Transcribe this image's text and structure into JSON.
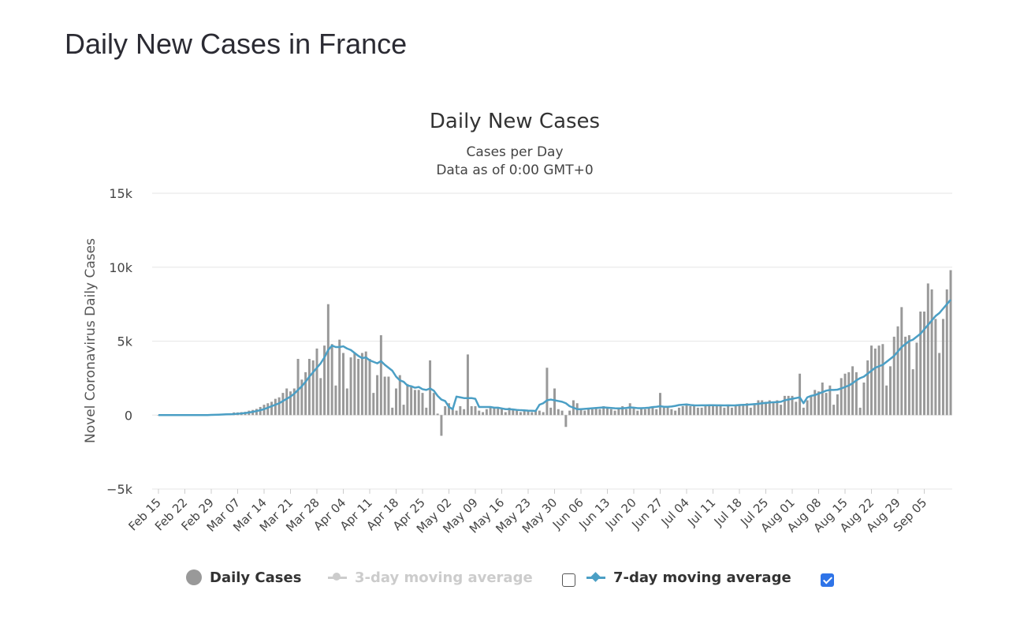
{
  "page": {
    "title": "Daily New Cases in France"
  },
  "chart_data": {
    "type": "bar",
    "title": "Daily New Cases",
    "subtitle_1": "Cases per Day",
    "subtitle_2": "Data as of 0:00 GMT+0",
    "ylabel": "Novel Coronavirus Daily Cases",
    "xlabel": "",
    "ylim": [
      -5000,
      15000
    ],
    "y_ticks": [
      -5000,
      0,
      5000,
      10000,
      15000
    ],
    "y_tick_labels": [
      "−5k",
      "0",
      "5k",
      "10k",
      "15k"
    ],
    "x_tick_labels": [
      "Feb 15",
      "Feb 22",
      "Feb 29",
      "Mar 07",
      "Mar 14",
      "Mar 21",
      "Mar 28",
      "Apr 04",
      "Apr 11",
      "Apr 18",
      "Apr 25",
      "May 02",
      "May 09",
      "May 16",
      "May 23",
      "May 30",
      "Jun 06",
      "Jun 13",
      "Jun 20",
      "Jun 27",
      "Jul 04",
      "Jul 11",
      "Jul 18",
      "Jul 25",
      "Aug 01",
      "Aug 08",
      "Aug 15",
      "Aug 22",
      "Aug 29",
      "Sep 05"
    ],
    "grid": true,
    "legend_position": "bottom",
    "colors": {
      "bars": "#999999",
      "ma7": "#4b9fc5",
      "ma3": "#cccccc",
      "checkbox_on": "#2f74e8"
    },
    "series": [
      {
        "name": "Daily Cases",
        "type": "bar",
        "visible": true
      },
      {
        "name": "3-day moving average",
        "type": "line",
        "visible": false,
        "checked": false
      },
      {
        "name": "7-day moving average",
        "type": "line",
        "visible": true,
        "checked": true
      }
    ],
    "daily_cases_by_week": [
      [
        0,
        0,
        0,
        0,
        0,
        0,
        0
      ],
      [
        0,
        0,
        0,
        0,
        0,
        0,
        5
      ],
      [
        10,
        20,
        30,
        40,
        60,
        90,
        180
      ],
      [
        180,
        200,
        220,
        300,
        350,
        420,
        550
      ],
      [
        700,
        800,
        900,
        1100,
        1200,
        1500,
        1800
      ],
      [
        1600,
        1800,
        3800,
        2400,
        2900,
        3800,
        3700
      ],
      [
        4500,
        2500,
        4700,
        7500,
        4800,
        2000,
        5100
      ],
      [
        4200,
        1800,
        3900,
        4200,
        3800,
        4200,
        4300
      ],
      [
        3800,
        1500,
        2700,
        5400,
        2600,
        2600,
        500
      ],
      [
        1800,
        2700,
        700,
        2100,
        1900,
        1700,
        1700
      ],
      [
        1500,
        500,
        3700,
        1500,
        100,
        -1400,
        600
      ],
      [
        800,
        400,
        300,
        600,
        400,
        4100,
        600
      ],
      [
        600,
        300,
        200,
        400,
        600,
        500,
        500
      ],
      [
        400,
        200,
        500,
        400,
        300,
        200,
        300
      ],
      [
        300,
        200,
        300,
        300,
        200,
        3200,
        500
      ],
      [
        1800,
        400,
        300,
        -800,
        300,
        1000,
        800
      ],
      [
        400,
        300,
        400,
        400,
        500,
        400,
        600
      ],
      [
        500,
        400,
        300,
        400,
        600,
        400,
        800
      ],
      [
        500,
        300,
        500,
        400,
        500,
        500,
        400
      ],
      [
        1500,
        500,
        600,
        400,
        300,
        500,
        600
      ],
      [
        700,
        600,
        700,
        500,
        500,
        600,
        700
      ],
      [
        600,
        600,
        700,
        500,
        600,
        500,
        600
      ],
      [
        700,
        700,
        800,
        500,
        800,
        1000,
        1000
      ],
      [
        900,
        1000,
        900,
        1000,
        700,
        1300,
        1300
      ],
      [
        1300,
        900,
        2800,
        500,
        1000,
        1300,
        1700
      ],
      [
        1600,
        2200,
        1500,
        2000,
        700,
        1400,
        2500
      ],
      [
        2800,
        2900,
        3300,
        2900,
        500,
        2200,
        3700
      ],
      [
        4700,
        4500,
        4700,
        4800,
        2000,
        3300,
        5300
      ],
      [
        6000,
        7300,
        5300,
        5400,
        3100,
        4900,
        7000
      ],
      [
        7000,
        8900,
        8500,
        6500,
        4200,
        6500,
        8500
      ],
      [
        9800
      ]
    ],
    "ma7_by_week": [
      [
        0,
        0,
        0,
        0,
        0,
        0,
        0
      ],
      [
        0,
        0,
        0,
        0,
        0,
        0,
        0
      ],
      [
        10,
        20,
        30,
        40,
        50,
        60,
        70
      ],
      [
        90,
        110,
        140,
        170,
        220,
        270,
        330
      ],
      [
        400,
        500,
        600,
        700,
        800,
        950,
        1100
      ],
      [
        1250,
        1450,
        1700,
        1950,
        2250,
        2600,
        2900
      ],
      [
        3200,
        3500,
        3900,
        4400,
        4700,
        4600,
        4600
      ],
      [
        4650,
        4500,
        4400,
        4200,
        4000,
        3850,
        3900
      ],
      [
        3700,
        3600,
        3500,
        3650,
        3400,
        3200,
        3000
      ],
      [
        2600,
        2350,
        2250,
        2000,
        1950,
        1850,
        1900
      ],
      [
        1750,
        1700,
        1800,
        1650,
        1300,
        1050,
        950
      ],
      [
        550,
        400,
        1250,
        1200,
        1150,
        1150,
        1150
      ],
      [
        1100,
        550,
        550,
        550,
        550,
        500,
        500
      ],
      [
        450,
        400,
        400,
        380,
        350,
        330,
        320
      ],
      [
        300,
        290,
        280,
        700,
        800,
        1000,
        1050
      ],
      [
        1000,
        950,
        900,
        800,
        600,
        500,
        400
      ],
      [
        400,
        420,
        440,
        460,
        480,
        500,
        520
      ],
      [
        500,
        480,
        460,
        450,
        460,
        480,
        520
      ],
      [
        500,
        470,
        470,
        480,
        500,
        540,
        560
      ],
      [
        600,
        560,
        560,
        580,
        620,
        680,
        700
      ],
      [
        720,
        680,
        660,
        650,
        660,
        660,
        670
      ],
      [
        670,
        660,
        660,
        650,
        660,
        650,
        660
      ],
      [
        680,
        690,
        700,
        720,
        740,
        760,
        800
      ],
      [
        820,
        850,
        870,
        880,
        900,
        1000,
        1050
      ],
      [
        1100,
        1150,
        1200,
        800,
        1200,
        1300,
        1350
      ],
      [
        1450,
        1550,
        1650,
        1700,
        1700,
        1720,
        1800
      ],
      [
        1900,
        2000,
        2150,
        2350,
        2500,
        2600,
        2800
      ],
      [
        3000,
        3200,
        3300,
        3400,
        3600,
        3800,
        4000
      ],
      [
        4300,
        4600,
        4800,
        5000,
        5100,
        5300,
        5500
      ],
      [
        5800,
        6100,
        6400,
        6700,
        6900,
        7200,
        7500
      ],
      [
        7800
      ]
    ]
  }
}
